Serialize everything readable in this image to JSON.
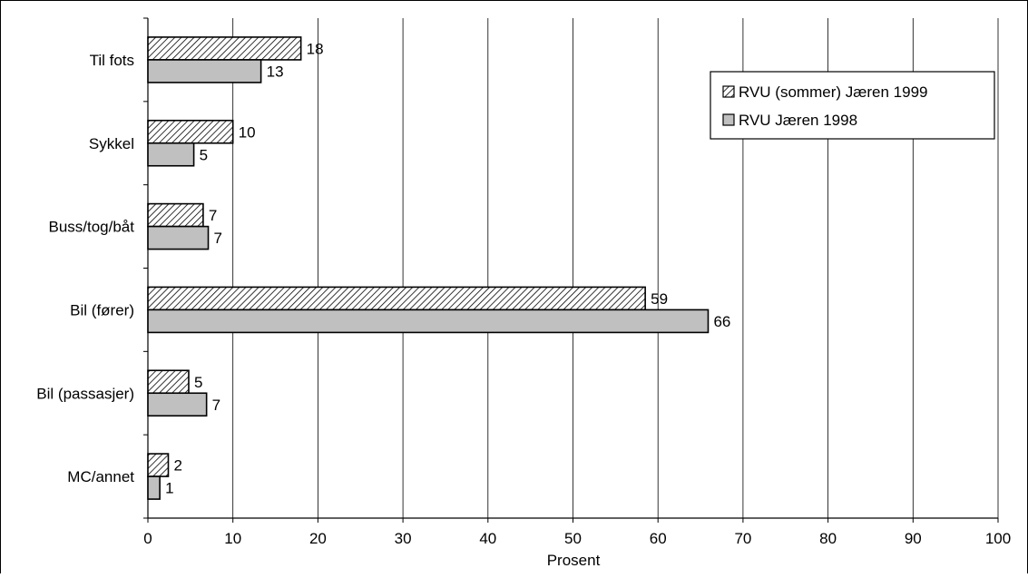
{
  "chart_data": {
    "type": "bar",
    "orientation": "horizontal",
    "categories": [
      "Til fots",
      "Sykkel",
      "Buss/tog/båt",
      "Bil (fører)",
      "Bil (passasjer)",
      "MC/annet"
    ],
    "series": [
      {
        "name": "RVU (sommer) Jæren 1999",
        "values": [
          18,
          10,
          7,
          59,
          5,
          2
        ],
        "exact_values": [
          18,
          10,
          6.5,
          58.5,
          4.8,
          2.4
        ],
        "fill": "hatched",
        "color": "#ffffff"
      },
      {
        "name": "RVU Jæren 1998",
        "values": [
          13,
          5,
          7,
          66,
          7,
          1
        ],
        "exact_values": [
          13.3,
          5.4,
          7.1,
          65.9,
          6.9,
          1.4
        ],
        "fill": "solid",
        "color": "#c0c0c0"
      }
    ],
    "xlabel": "Prosent",
    "ylabel": "",
    "xlim": [
      0,
      100
    ],
    "xticks": [
      "0",
      "10",
      "20",
      "30",
      "40",
      "50",
      "60",
      "70",
      "80",
      "90",
      "100"
    ],
    "grid": "vertical",
    "legend_position": "top-right"
  }
}
